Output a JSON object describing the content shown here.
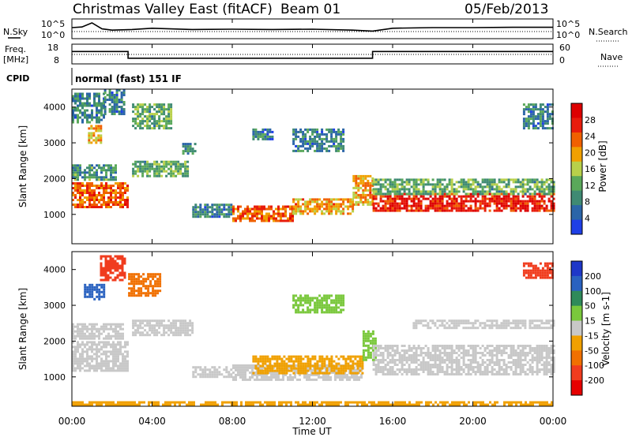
{
  "header": {
    "station": "Christmas Valley East (fitACF)",
    "beam": "Beam 01",
    "date": "05/Feb/2013"
  },
  "left_labels": {
    "nsky": "N.Sky",
    "freq_line1": "Freq.",
    "freq_line2": "[MHz]",
    "cpid": "CPID"
  },
  "right_labels": {
    "nsearch": "N.Search",
    "nave": "Nave"
  },
  "cpid_text": "normal (fast) 151 IF",
  "noise_axis": {
    "left_ticks": [
      "10^5",
      "10^0"
    ],
    "right_ticks": [
      "10^5",
      "10^0"
    ]
  },
  "freq_axis": {
    "left_ticks": [
      "18",
      "8"
    ],
    "right_ticks": [
      "60",
      "0"
    ]
  },
  "time_axis": {
    "label": "Time UT",
    "ticks": [
      "00:00",
      "04:00",
      "08:00",
      "12:00",
      "16:00",
      "20:00",
      "00:00"
    ]
  },
  "power_panel": {
    "ylabel": "Slant Range [km]",
    "yticks": [
      "4000",
      "3000",
      "2000",
      "1000"
    ],
    "colorbar_label": "Power [dB]",
    "colorbar_ticks": [
      "28",
      "24",
      "20",
      "16",
      "12",
      "8",
      "4"
    ],
    "colors": [
      "#1f3fe6",
      "#2b65a8",
      "#3f8a73",
      "#5aa85a",
      "#b8d04a",
      "#f0a000",
      "#f06000",
      "#e81c0c",
      "#dd0000"
    ]
  },
  "velocity_panel": {
    "ylabel": "Slant Range [km]",
    "yticks": [
      "4000",
      "3000",
      "2000",
      "1000"
    ],
    "colorbar_label": "Velocity [m s-1]",
    "colorbar_ticks": [
      "200",
      "100",
      "50",
      "15",
      "-15",
      "-50",
      "-100",
      "-200"
    ],
    "colors": [
      "#1e37c8",
      "#2a62c0",
      "#2f8a5a",
      "#7ac83c",
      "#c8c8c8",
      "#f0a000",
      "#f07000",
      "#f03c1e",
      "#e60000"
    ]
  },
  "chart_data": [
    {
      "type": "line",
      "name": "noise",
      "x": [
        0,
        0.5,
        1.0,
        1.5,
        2,
        3,
        4,
        6,
        8,
        10,
        12,
        14,
        15,
        16,
        18,
        20,
        22,
        24
      ],
      "y": [
        3.0,
        3.2,
        4.5,
        2.6,
        2.2,
        2.4,
        2.8,
        2.4,
        2.5,
        2.4,
        2.5,
        2.2,
        1.9,
        2.8,
        3.0,
        3.0,
        3.1,
        3.1
      ]
    },
    {
      "type": "line",
      "name": "frequency",
      "x": [
        0,
        2.8,
        2.8,
        15,
        15,
        24
      ],
      "y": [
        14.5,
        14.5,
        10.5,
        10.5,
        14.5,
        14.5
      ]
    },
    {
      "type": "heatmap",
      "name": "power",
      "xlim": [
        0,
        24
      ],
      "ylim": [
        180,
        4500
      ],
      "regions": [
        {
          "x": [
            0.0,
            2.8
          ],
          "y": [
            1200,
            1900
          ],
          "v": 24
        },
        {
          "x": [
            0.0,
            2.2
          ],
          "y": [
            2000,
            2400
          ],
          "v": 10
        },
        {
          "x": [
            0.8,
            1.5
          ],
          "y": [
            3000,
            3500
          ],
          "v": 20
        },
        {
          "x": [
            0.0,
            1.6
          ],
          "y": [
            3600,
            4400
          ],
          "v": 8
        },
        {
          "x": [
            1.6,
            2.6
          ],
          "y": [
            3800,
            4500
          ],
          "v": 8
        },
        {
          "x": [
            3.0,
            5.8
          ],
          "y": [
            2100,
            2500
          ],
          "v": 12
        },
        {
          "x": [
            3.0,
            5.0
          ],
          "y": [
            3400,
            4100
          ],
          "v": 12
        },
        {
          "x": [
            5.5,
            6.2
          ],
          "y": [
            2700,
            3000
          ],
          "v": 8
        },
        {
          "x": [
            6.0,
            8.0
          ],
          "y": [
            950,
            1300
          ],
          "v": 8
        },
        {
          "x": [
            8.0,
            11.0
          ],
          "y": [
            850,
            1250
          ],
          "v": 24
        },
        {
          "x": [
            11.0,
            14.0
          ],
          "y": [
            1000,
            1450
          ],
          "v": 20
        },
        {
          "x": [
            14.0,
            15.0
          ],
          "y": [
            1300,
            2100
          ],
          "v": 20
        },
        {
          "x": [
            15.0,
            24.0
          ],
          "y": [
            1100,
            1600
          ],
          "v": 28
        },
        {
          "x": [
            15.0,
            24.0
          ],
          "y": [
            1600,
            2000
          ],
          "v": 12
        },
        {
          "x": [
            11.0,
            13.5
          ],
          "y": [
            2800,
            3400
          ],
          "v": 8
        },
        {
          "x": [
            9.0,
            10.0
          ],
          "y": [
            3100,
            3400
          ],
          "v": 8
        },
        {
          "x": [
            22.5,
            24.0
          ],
          "y": [
            3400,
            4100
          ],
          "v": 8
        }
      ]
    },
    {
      "type": "heatmap",
      "name": "velocity",
      "xlim": [
        0,
        24
      ],
      "ylim": [
        180,
        4500
      ],
      "regions": [
        {
          "x": [
            0.0,
            2.8
          ],
          "y": [
            1200,
            2000
          ],
          "v": 0
        },
        {
          "x": [
            0.0,
            2.5
          ],
          "y": [
            2100,
            2500
          ],
          "v": 0
        },
        {
          "x": [
            0.6,
            1.6
          ],
          "y": [
            3200,
            3600
          ],
          "v": 150
        },
        {
          "x": [
            1.4,
            2.6
          ],
          "y": [
            3700,
            4400
          ],
          "v": -150
        },
        {
          "x": [
            2.8,
            4.4
          ],
          "y": [
            3300,
            3900
          ],
          "v": -80
        },
        {
          "x": [
            3.0,
            6.0
          ],
          "y": [
            2200,
            2600
          ],
          "v": 0
        },
        {
          "x": [
            6.0,
            8.0
          ],
          "y": [
            1000,
            1300
          ],
          "v": 0
        },
        {
          "x": [
            8.0,
            14.5
          ],
          "y": [
            900,
            1350
          ],
          "v": 0
        },
        {
          "x": [
            9.0,
            14.5
          ],
          "y": [
            1100,
            1600
          ],
          "v": -30
        },
        {
          "x": [
            14.5,
            15.2
          ],
          "y": [
            1500,
            2300
          ],
          "v": 20
        },
        {
          "x": [
            15.0,
            24.0
          ],
          "y": [
            1100,
            1900
          ],
          "v": 0
        },
        {
          "x": [
            0.0,
            24.0
          ],
          "y": [
            200,
            320
          ],
          "v": -30
        },
        {
          "x": [
            11.0,
            13.5
          ],
          "y": [
            2800,
            3300
          ],
          "v": 30
        },
        {
          "x": [
            17.0,
            24.0
          ],
          "y": [
            2400,
            2600
          ],
          "v": 0
        },
        {
          "x": [
            22.5,
            24.0
          ],
          "y": [
            3800,
            4200
          ],
          "v": -150
        }
      ]
    }
  ]
}
